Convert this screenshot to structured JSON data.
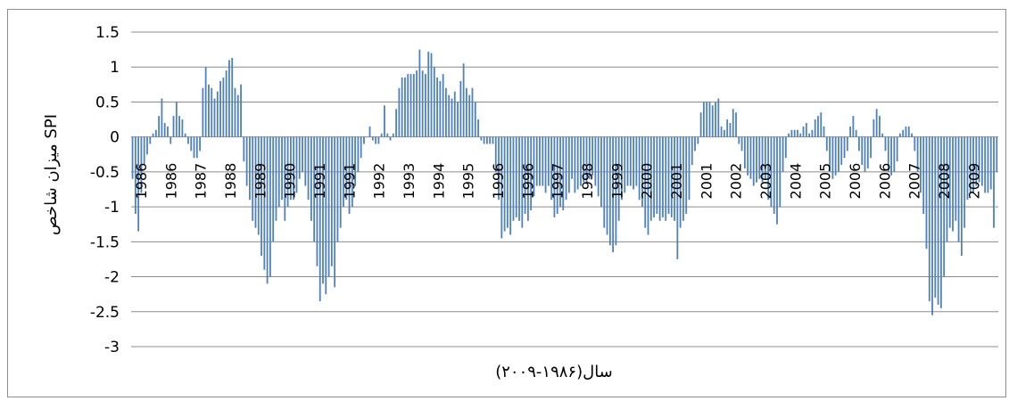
{
  "chart_data": {
    "type": "bar",
    "title": "",
    "ylabel": "میزان شاخص SPI",
    "xlabel": "سال(۱۹۸۶-۲۰۰۹)",
    "ylim": [
      -3,
      1.5
    ],
    "yticks": [
      "1.5",
      "1",
      "0.5",
      "0",
      "-0.5",
      "-1",
      "-1.5",
      "-2",
      "-2.5",
      "-3"
    ],
    "grid": "horizontal",
    "bar_color": "#4f81bd",
    "x_tick_labels": [
      "1986",
      "1986",
      "1987",
      "1988",
      "1989",
      "1990",
      "1991",
      "1991",
      "1992",
      "1993",
      "1994",
      "1995",
      "1996",
      "1996",
      "1997",
      "1998",
      "1999",
      "2000",
      "2001",
      "2001",
      "2002",
      "2003",
      "2004",
      "2005",
      "2006",
      "2006",
      "2007",
      "2008",
      "2009"
    ],
    "series": [
      {
        "values": [
          -0.6,
          -1.1,
          -1.35,
          -0.8,
          -0.4,
          -0.25,
          -0.1,
          0.05,
          0.1,
          0.3,
          0.55,
          0.2,
          0.15,
          -0.1,
          0.3,
          0.5,
          0.3,
          0.25,
          0.05,
          -0.1,
          -0.2,
          -0.3,
          -0.3,
          -0.2,
          0.7,
          1.0,
          0.75,
          0.7,
          0.55,
          0.65,
          0.8,
          0.85,
          0.95,
          1.1,
          1.13,
          0.7,
          0.6,
          0.75,
          -0.35,
          -0.7,
          -0.9,
          -1.2,
          -1.3,
          -1.4,
          -1.7,
          -1.9,
          -2.1,
          -2.0,
          -1.5,
          -1.2,
          -1.0,
          -0.9,
          -1.2,
          -1.0,
          -0.9,
          -0.9,
          -0.8,
          -0.6,
          -0.5,
          -0.7,
          -0.9,
          -1.2,
          -1.5,
          -1.85,
          -2.35,
          -2.1,
          -2.25,
          -2.0,
          -1.85,
          -2.15,
          -1.5,
          -1.3,
          -1.0,
          -0.9,
          -1.1,
          -1.0,
          -0.7,
          -0.5,
          -0.3,
          -0.1,
          0.0,
          0.15,
          -0.05,
          -0.1,
          -0.1,
          0.05,
          0.45,
          0.05,
          -0.05,
          0.05,
          0.4,
          0.7,
          0.85,
          0.85,
          0.9,
          0.9,
          0.9,
          0.95,
          1.25,
          0.95,
          0.9,
          1.22,
          1.2,
          1.0,
          0.85,
          0.8,
          0.9,
          0.7,
          0.6,
          0.55,
          0.65,
          0.5,
          0.8,
          1.05,
          0.7,
          0.6,
          0.7,
          0.5,
          0.25,
          -0.05,
          -0.1,
          -0.1,
          -0.1,
          -0.1,
          -0.5,
          -0.9,
          -1.45,
          -1.35,
          -1.3,
          -1.4,
          -1.2,
          -1.15,
          -1.2,
          -1.3,
          -1.1,
          -1.2,
          -1.05,
          -0.85,
          -0.7,
          -0.7,
          -0.7,
          -0.8,
          -0.7,
          -0.9,
          -1.15,
          -1.1,
          -1.0,
          -1.05,
          -0.9,
          -0.8,
          -0.6,
          -0.8,
          -0.75,
          -0.7,
          -0.65,
          -0.65,
          -0.6,
          -0.55,
          -0.7,
          -0.85,
          -1.0,
          -1.3,
          -1.4,
          -1.55,
          -1.65,
          -1.55,
          -1.2,
          -0.9,
          -0.8,
          -0.7,
          -0.7,
          -0.75,
          -0.7,
          -0.9,
          -1.0,
          -1.3,
          -1.4,
          -1.2,
          -1.15,
          -1.1,
          -1.2,
          -1.15,
          -1.2,
          -1.1,
          -1.15,
          -1.2,
          -1.75,
          -1.3,
          -1.2,
          -1.1,
          -0.9,
          -0.4,
          -0.2,
          -0.1,
          0.35,
          0.5,
          0.5,
          0.5,
          0.45,
          0.5,
          0.55,
          0.15,
          0.1,
          0.25,
          0.2,
          0.4,
          0.35,
          -0.1,
          -0.2,
          -0.45,
          -0.55,
          -0.6,
          -0.7,
          -0.65,
          -0.6,
          -0.65,
          -0.6,
          -0.9,
          -1.0,
          -1.1,
          -1.25,
          -1.0,
          -0.5,
          -0.3,
          0.05,
          0.1,
          0.1,
          0.1,
          0.05,
          0.15,
          0.2,
          0.05,
          0.1,
          0.25,
          0.3,
          0.35,
          0.15,
          -0.2,
          -0.5,
          -0.6,
          -0.55,
          -0.5,
          -0.4,
          -0.3,
          -0.2,
          0.15,
          0.3,
          0.1,
          -0.2,
          -0.4,
          -0.5,
          -0.45,
          -0.3,
          0.25,
          0.4,
          0.3,
          0.05,
          -0.2,
          -0.5,
          -0.55,
          -0.5,
          -0.35,
          0.05,
          0.1,
          0.15,
          0.15,
          0.05,
          -0.2,
          -0.5,
          -0.8,
          -1.1,
          -1.6,
          -2.35,
          -2.55,
          -2.3,
          -2.4,
          -2.45,
          -2.0,
          -1.5,
          -1.3,
          -1.35,
          -1.2,
          -1.5,
          -1.7,
          -1.3,
          -0.9,
          -0.8,
          -0.8,
          -0.7,
          -0.65,
          -0.7,
          -0.8,
          -0.8,
          -0.75,
          -1.3,
          -0.5
        ]
      }
    ]
  }
}
